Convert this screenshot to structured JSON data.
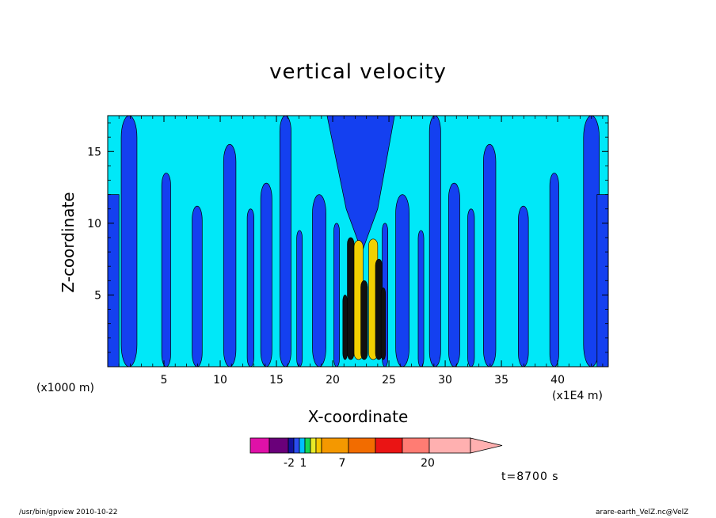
{
  "chart_data": {
    "type": "heatmap",
    "title": "vertical velocity",
    "xlabel": "X-coordinate",
    "ylabel": "Z-coordinate",
    "x_unit_left": "(x1000 m)",
    "x_unit_right": "(x1E4 m)",
    "x_ticks": [
      5,
      10,
      15,
      20,
      25,
      30,
      35,
      40
    ],
    "y_ticks": [
      5,
      10,
      15
    ],
    "xlim": [
      0,
      44.5
    ],
    "ylim": [
      0,
      17.5
    ],
    "colorbar": {
      "tick_labels": [
        "-2",
        "1",
        "7",
        "20"
      ],
      "colors": [
        "#e011a8",
        "#e011a8",
        "#6a007a",
        "#12129e",
        "#2a4df0",
        "#00bfff",
        "#15d655",
        "#e8ea28",
        "#f6c700",
        "#f49800",
        "#f26c00",
        "#ea1414",
        "#ff7c73",
        "#ffb0b0"
      ]
    },
    "field_colors": {
      "positive": "#00e8f8",
      "negative": "#1440f0",
      "strong_positive": "#f2d000",
      "strong_negative": "#101010"
    }
  },
  "annotations": {
    "time": "t=8700 s"
  },
  "footer": {
    "left": "/usr/bin/gpview   2010-10-22",
    "right": "arare-earth_VelZ.nc@VelZ"
  }
}
